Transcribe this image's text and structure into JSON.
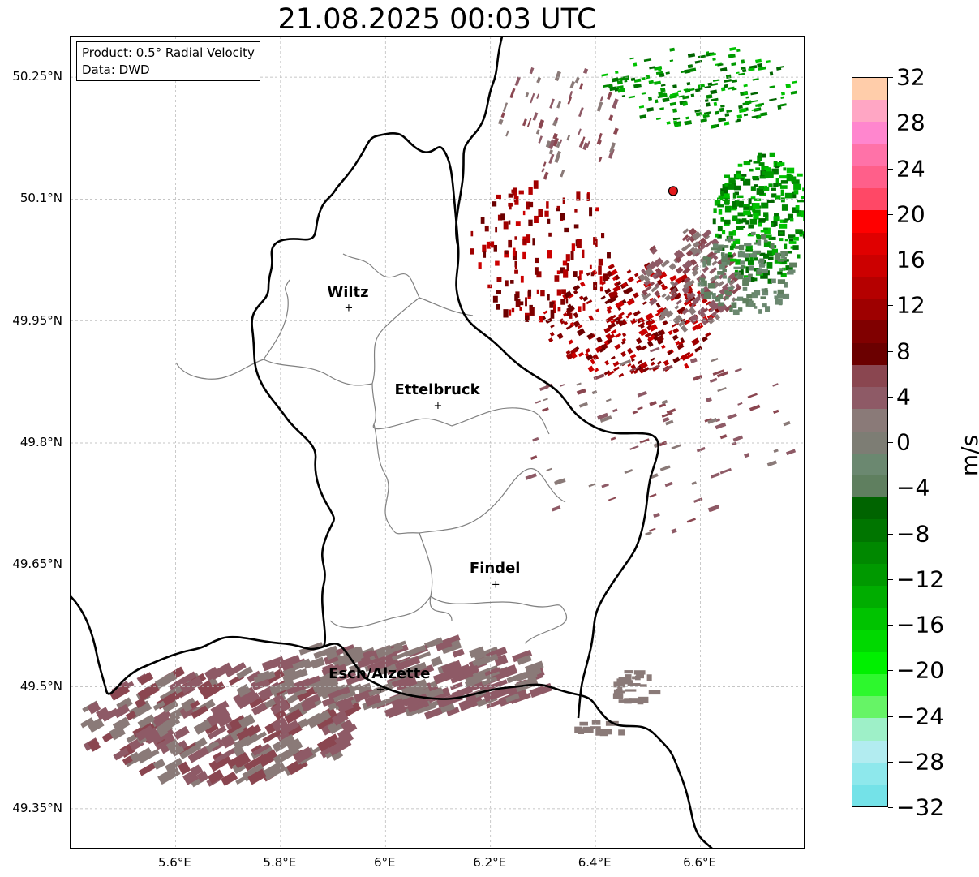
{
  "title": "21.08.2025 00:03 UTC",
  "info_box": {
    "product": "Product: 0.5° Radial Velocity",
    "data": "Data: DWD"
  },
  "lat_labels": [
    "50.25°N",
    "50.1°N",
    "49.95°N",
    "49.8°N",
    "49.65°N",
    "49.5°N",
    "49.35°N"
  ],
  "lat_values": [
    50.25,
    50.1,
    49.95,
    49.8,
    49.65,
    49.5,
    49.35
  ],
  "lon_labels": [
    "5.6°E",
    "5.8°E",
    "6°E",
    "6.2°E",
    "6.4°E",
    "6.6°E"
  ],
  "lon_values": [
    5.6,
    5.8,
    6.0,
    6.2,
    6.4,
    6.6
  ],
  "map_extent": {
    "lon_min": 5.4,
    "lon_max": 6.8,
    "lat_min": 49.3,
    "lat_max": 50.3
  },
  "cities": [
    {
      "name": "Wiltz",
      "lon": 5.93,
      "lat": 49.967
    },
    {
      "name": "Ettelbruck",
      "lon": 6.1,
      "lat": 49.847
    },
    {
      "name": "Findel",
      "lon": 6.21,
      "lat": 49.627
    },
    {
      "name": "Esch/Alzette",
      "lon": 5.99,
      "lat": 49.498
    }
  ],
  "radar_site": {
    "lon": 6.548,
    "lat": 50.11,
    "color": "#e31a1c"
  },
  "colorbar": {
    "unit": "m/s",
    "tick_labels": [
      "32",
      "28",
      "24",
      "20",
      "16",
      "12",
      "8",
      "4",
      "0",
      "−4",
      "−8",
      "−12",
      "−16",
      "−20",
      "−24",
      "−28",
      "−32"
    ],
    "tick_values": [
      32,
      28,
      24,
      20,
      16,
      12,
      8,
      4,
      0,
      -4,
      -8,
      -12,
      -16,
      -20,
      -24,
      -28,
      -32
    ],
    "colors_top_to_bottom": [
      "#ffcdaa",
      "#ffa6c4",
      "#ff86ce",
      "#ff72a8",
      "#ff5f8a",
      "#ff4866",
      "#ff0000",
      "#e00000",
      "#cc0000",
      "#b50000",
      "#9e0000",
      "#800000",
      "#6b0000",
      "#8a4650",
      "#8e5a66",
      "#8a7a78",
      "#7d7d74",
      "#6b8870",
      "#5f7f5f",
      "#006400",
      "#007500",
      "#008800",
      "#009900",
      "#00ad00",
      "#00c300",
      "#00d900",
      "#00f000",
      "#2df82d",
      "#66f466",
      "#9ef0c8",
      "#b2ecf0",
      "#8ee8ec",
      "#74e2e8"
    ]
  }
}
